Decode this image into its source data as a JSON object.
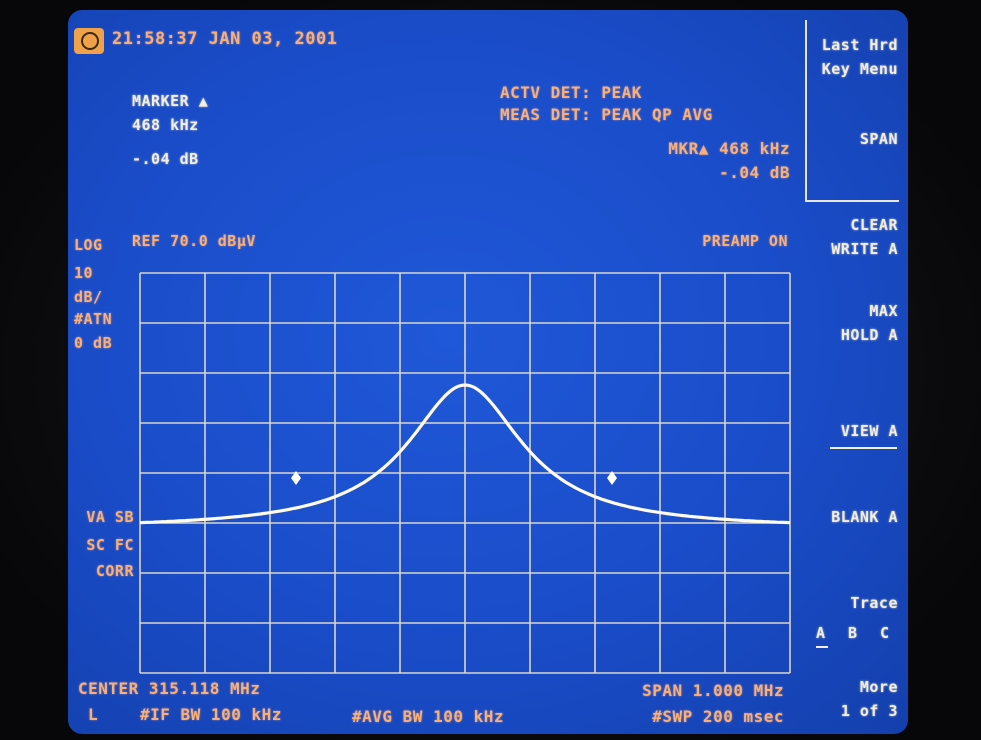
{
  "header": {
    "datetime": "21:58:37 JAN 03, 2001"
  },
  "marker": {
    "title": "MARKER ▲",
    "freq": "468 kHz",
    "level": "-.04 dB"
  },
  "detector": {
    "actv": "ACTV DET: PEAK",
    "meas": "MEAS DET: PEAK QP AVG",
    "mkr_freq": "MKR▲ 468 kHz",
    "mkr_level": "-.04 dB"
  },
  "scale": {
    "mode": "LOG",
    "ref": "REF 70.0 dBµV",
    "div_value": "10",
    "div_unit": "dB/",
    "atten_label": "#ATN",
    "atten_value": "0 dB",
    "preamp": "PREAMP ON"
  },
  "indicators": {
    "line1": "VA SB",
    "line2": "SC FC",
    "line3": "CORR"
  },
  "footer": {
    "center": "CENTER 315.118 MHz",
    "left_flag": "L",
    "if_bw": "#IF BW 100 kHz",
    "avg_bw": "#AVG BW 100 kHz",
    "span": "SPAN 1.000 MHz",
    "sweep": "#SWP 200 msec"
  },
  "softkeys": {
    "title_line1": "Last Hrd",
    "title_line2": "Key Menu",
    "span": "SPAN",
    "clear_line1": "CLEAR",
    "clear_line2": "WRITE A",
    "max_line1": "MAX",
    "max_line2": "HOLD A",
    "view": "VIEW A",
    "blank": "BLANK A",
    "trace_label": "Trace",
    "trace_a": "A",
    "trace_b": "B",
    "trace_c": "C",
    "more_line1": "More",
    "more_line2": "1 of 3"
  },
  "colors": {
    "screen": "#1a4cc8",
    "text_white": "#f2efe0",
    "text_orange": "#f7b07a",
    "grid": "#d9d6c8",
    "trace": "#fffbe8"
  }
}
